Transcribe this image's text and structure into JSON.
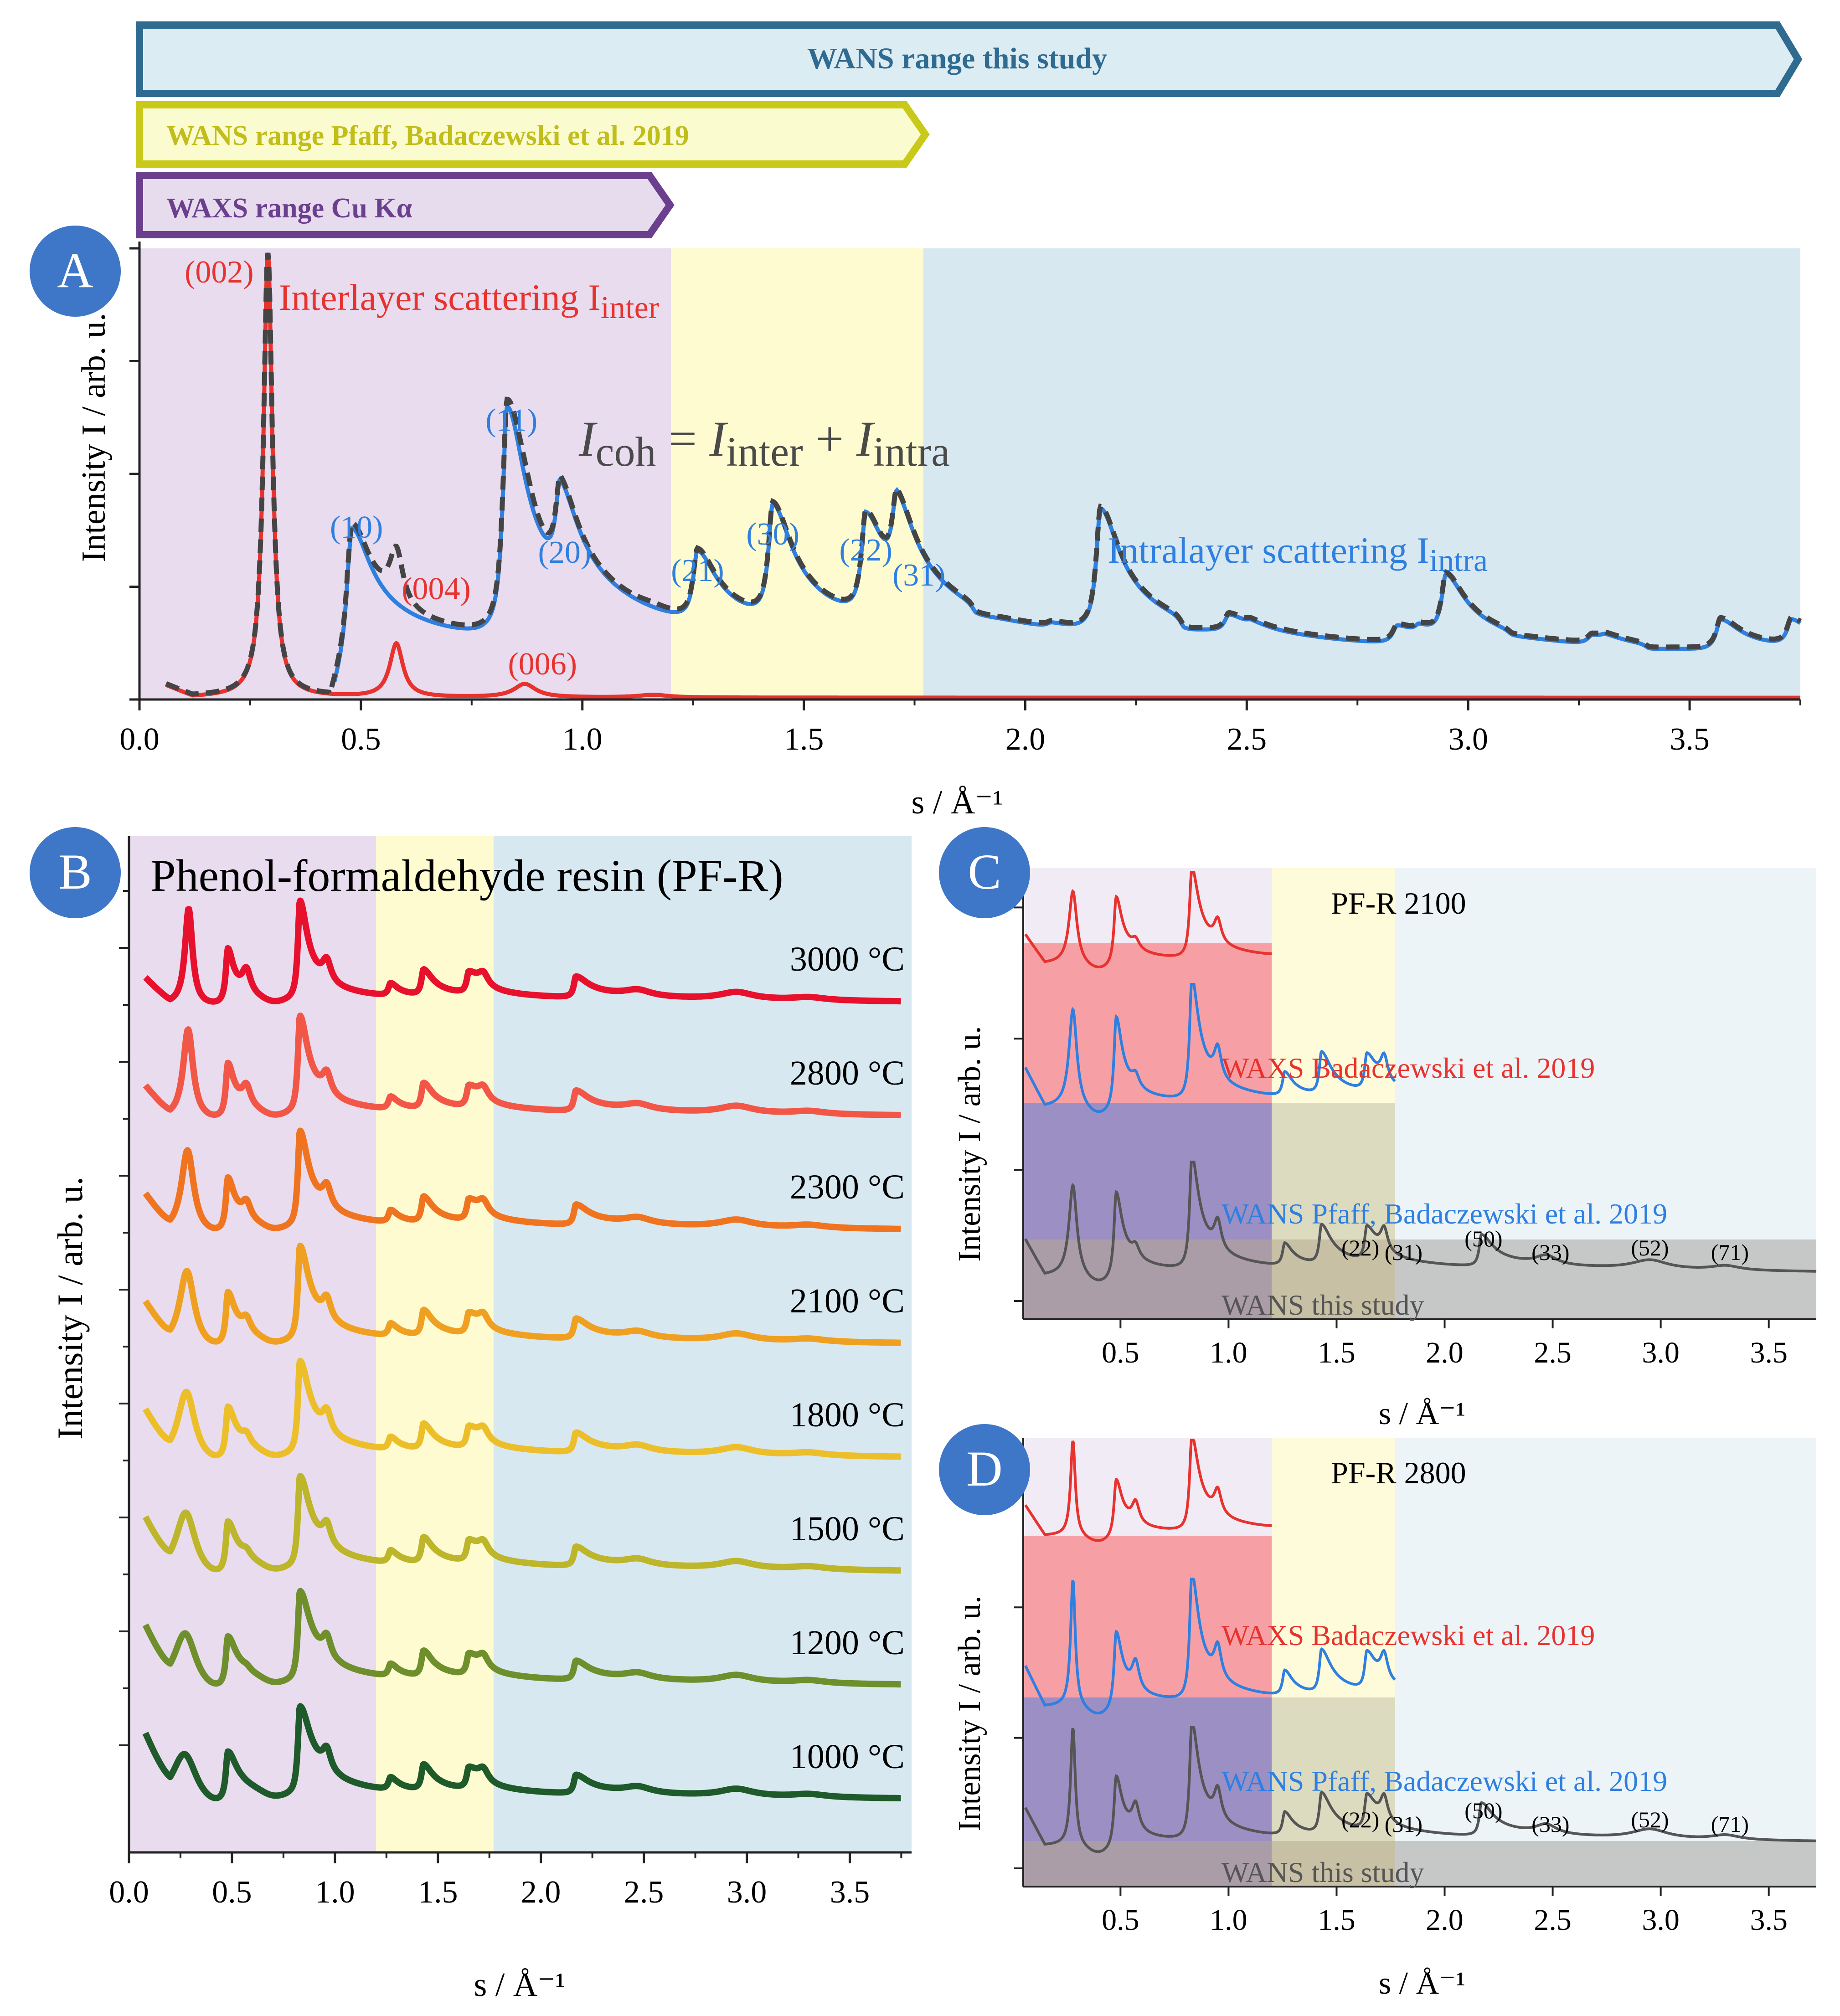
{
  "colors": {
    "waxs_bg": "#e8dcee",
    "wans2019_bg": "#fdfbcf",
    "wans_bg": "#d8e8f1",
    "inter": "#e8322e",
    "intra": "#2f7fe0",
    "coh": "#444444",
    "banner_waxs_fill": "#e7dbee",
    "banner_waxs_stroke": "#6b3f8e",
    "banner_waxs_text": "#6b3f8e",
    "banner_pfaff_fill": "#fbfbd0",
    "banner_pfaff_stroke": "#c9c91a",
    "banner_pfaff_text": "#c1bd1a",
    "banner_wans_fill": "#dcecf3",
    "banner_wans_stroke": "#2f6a90",
    "banner_wans_text": "#2f6a90",
    "badge": "#3e77c8",
    "cd_waxs_fill": "#f6a0a5",
    "cd_pfaff_fill": "#9b8fc4",
    "cd_wans_fill": "#c9c4b8"
  },
  "banners": {
    "wans": "WANS range this study",
    "pfaff": "WANS range Pfaff, Badaczewski et al. 2019",
    "waxs": "WAXS range Cu Kα"
  },
  "panels": {
    "a": {
      "badge": "A",
      "ylabel": "Intensity I / arb. u.",
      "xlabel": "s / Å⁻¹"
    },
    "b": {
      "badge": "B",
      "title": "Phenol-formaldehyde resin (PF-R)",
      "ylabel": "Intensity I / arb. u.",
      "xlabel": "s / Å⁻¹"
    },
    "c": {
      "badge": "C",
      "title": "PF-R 2100",
      "ylabel": "Intensity I / arb. u.",
      "xlabel": "s / Å⁻¹"
    },
    "d": {
      "badge": "D",
      "title": "PF-R 2800",
      "ylabel": "Intensity I / arb. u.",
      "xlabel": "s / Å⁻¹"
    }
  },
  "a_annotations": {
    "inter_label": "Interlayer scattering I",
    "inter_sub": "inter",
    "intra_label": "Intralayer scattering I",
    "intra_sub": "intra",
    "eq_i1": "I",
    "eq_s1": "coh",
    "eq_mid": " = ",
    "eq_i2": "I",
    "eq_s2": "inter",
    "eq_plus": " + ",
    "eq_i3": "I",
    "eq_s3": "intra"
  },
  "cd_labels": {
    "waxs": "WAXS Badaczewski et al. 2019",
    "pfaff": "WANS Pfaff, Badaczewski et al. 2019",
    "wans": "WANS this study"
  },
  "chart_data": [
    {
      "type": "line",
      "panel": "A",
      "xlim": [
        0.0,
        3.75
      ],
      "ylim": [
        0,
        1.0
      ],
      "x_ticks": [
        "0.0",
        "0.5",
        "1.0",
        "1.5",
        "2.0",
        "2.5",
        "3.0",
        "3.5"
      ],
      "regions": [
        {
          "name": "WAXS range Cu Kα",
          "x": [
            0.0,
            1.2
          ]
        },
        {
          "name": "WANS range Pfaff, Badaczewski et al. 2019",
          "x": [
            1.2,
            1.77
          ]
        },
        {
          "name": "WANS range this study",
          "x": [
            1.77,
            3.75
          ]
        }
      ],
      "inter_peaks": [
        {
          "label": "(002)",
          "s": 0.29,
          "height": 1.0
        },
        {
          "label": "(004)",
          "s": 0.58,
          "height": 0.12
        },
        {
          "label": "(006)",
          "s": 0.87,
          "height": 0.03
        }
      ],
      "intra_peaks": [
        {
          "label": "(10)",
          "s": 0.48,
          "height": 0.3
        },
        {
          "label": "(11)",
          "s": 0.83,
          "height": 0.57
        },
        {
          "label": "(20)",
          "s": 0.95,
          "height": 0.26
        },
        {
          "label": "(21)",
          "s": 1.26,
          "height": 0.21
        },
        {
          "label": "(30)",
          "s": 1.43,
          "height": 0.31
        },
        {
          "label": "(22)",
          "s": 1.64,
          "height": 0.28
        },
        {
          "label": "(31)",
          "s": 1.71,
          "height": 0.24
        }
      ]
    },
    {
      "type": "line",
      "panel": "B",
      "xlim": [
        0.0,
        3.8
      ],
      "x_ticks": [
        "0.0",
        "0.5",
        "1.0",
        "1.5",
        "2.0",
        "2.5",
        "3.0",
        "3.5"
      ],
      "series": [
        {
          "name": "3000 °C",
          "color": "#e8112d"
        },
        {
          "name": "2800 °C",
          "color": "#f25647"
        },
        {
          "name": "2300 °C",
          "color": "#f07420"
        },
        {
          "name": "2100 °C",
          "color": "#f0a021"
        },
        {
          "name": "1800 °C",
          "color": "#ecbf2a"
        },
        {
          "name": "1500 °C",
          "color": "#bdb52a"
        },
        {
          "name": "1200 °C",
          "color": "#6f8f2c"
        },
        {
          "name": "1000 °C",
          "color": "#1f5a2a"
        }
      ]
    },
    {
      "type": "line",
      "panel": "C",
      "xlim": [
        0.05,
        3.72
      ],
      "x_ticks": [
        "0.5",
        "1.0",
        "1.5",
        "2.0",
        "2.5",
        "3.0",
        "3.5"
      ],
      "series": [
        {
          "name": "WAXS Badaczewski et al. 2019",
          "color": "#e8322e",
          "s_max": 1.2
        },
        {
          "name": "WANS Pfaff, Badaczewski et al. 2019",
          "color": "#2f7fe0",
          "s_max": 1.77
        },
        {
          "name": "WANS this study",
          "color": "#555555",
          "s_max": 3.72
        }
      ],
      "peak_labels": [
        {
          "label": "(22)",
          "s": 1.64
        },
        {
          "label": "(31)",
          "s": 1.74
        },
        {
          "label": "(50)",
          "s": 2.16
        },
        {
          "label": "(33)",
          "s": 2.46
        },
        {
          "label": "(52)",
          "s": 2.95
        },
        {
          "label": "(71)",
          "s": 3.27
        }
      ]
    },
    {
      "type": "line",
      "panel": "D",
      "xlim": [
        0.05,
        3.72
      ],
      "x_ticks": [
        "0.5",
        "1.0",
        "1.5",
        "2.0",
        "2.5",
        "3.0",
        "3.5"
      ],
      "series": [
        {
          "name": "WAXS Badaczewski et al. 2019",
          "color": "#e8322e",
          "s_max": 1.2
        },
        {
          "name": "WANS Pfaff, Badaczewski et al. 2019",
          "color": "#2f7fe0",
          "s_max": 1.77
        },
        {
          "name": "WANS this study",
          "color": "#555555",
          "s_max": 3.72
        }
      ],
      "peak_labels": [
        {
          "label": "(22)",
          "s": 1.64
        },
        {
          "label": "(31)",
          "s": 1.74
        },
        {
          "label": "(50)",
          "s": 2.16
        },
        {
          "label": "(33)",
          "s": 2.46
        },
        {
          "label": "(52)",
          "s": 2.95
        },
        {
          "label": "(71)",
          "s": 3.27
        }
      ]
    }
  ]
}
